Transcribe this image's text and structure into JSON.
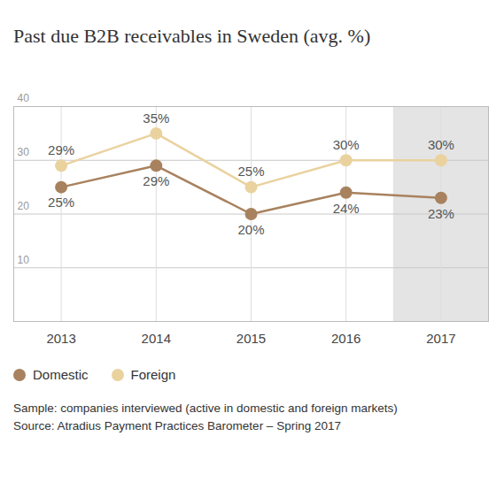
{
  "chart_data": {
    "type": "line",
    "title": "Past due B2B receivables in Sweden (avg. %)",
    "x": [
      2013,
      2014,
      2015,
      2016,
      2017
    ],
    "xlim": [
      2012.5,
      2017.5
    ],
    "xticks": [
      2013,
      2014,
      2015,
      2016,
      2017
    ],
    "ylim": [
      0,
      40
    ],
    "yticks": [
      10,
      20,
      30,
      40
    ],
    "grid": true,
    "data_labels": true,
    "marker": "circle",
    "legend": "bottom-left",
    "series": [
      {
        "name": "Domestic",
        "color": "#a8825f",
        "values": [
          25,
          29,
          20,
          24,
          23
        ],
        "value_labels": [
          "25%",
          "29%",
          "20%",
          "24%",
          "23%"
        ]
      },
      {
        "name": "Foreign",
        "color": "#ead29f",
        "values": [
          29,
          35,
          25,
          30,
          30
        ],
        "value_labels": [
          "29%",
          "35%",
          "25%",
          "30%",
          "30%"
        ]
      }
    ],
    "caption": "Sample: companies interviewed (active in domestic and foreign markets)",
    "source": "Source: Atradius Payment Practices Barometer – Spring 2017"
  }
}
